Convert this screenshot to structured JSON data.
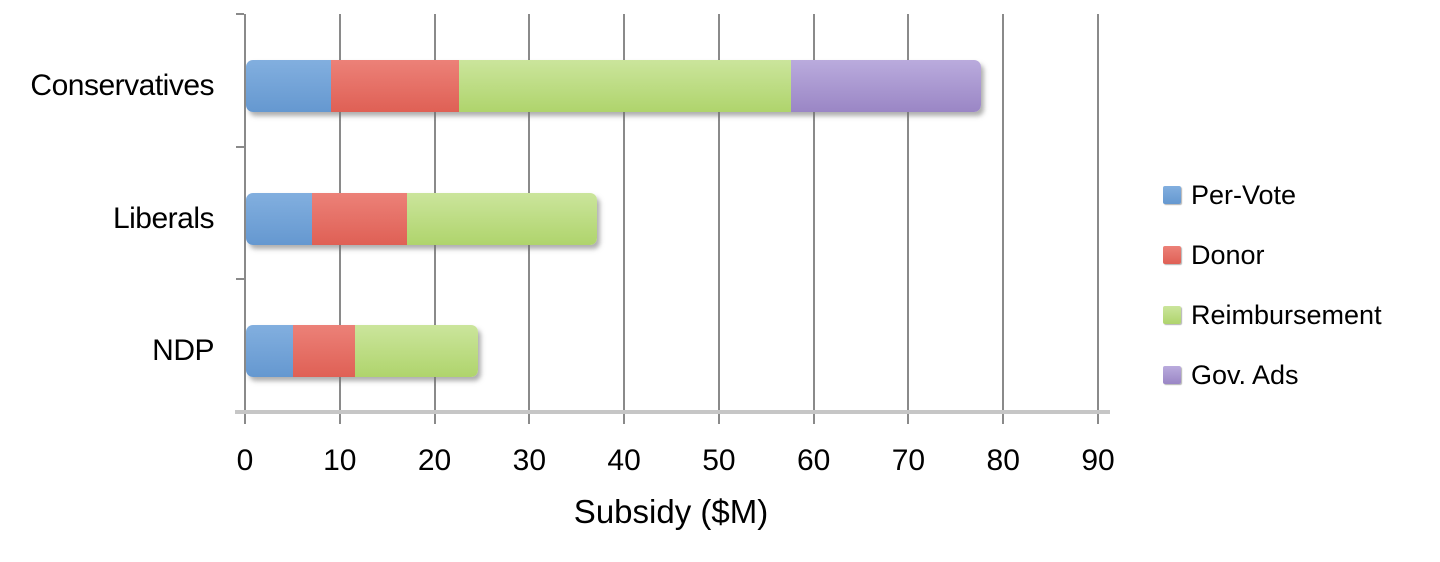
{
  "chart_data": {
    "type": "bar",
    "orientation": "horizontal",
    "stacked": true,
    "title": "",
    "xlabel": "Subsidy ($M)",
    "ylabel": "",
    "xlim": [
      0,
      90
    ],
    "xticks": [
      0,
      10,
      20,
      30,
      40,
      50,
      60,
      70,
      80,
      90
    ],
    "grid": true,
    "legend_position": "right",
    "categories": [
      "Conservatives",
      "Liberals",
      "NDP"
    ],
    "series": [
      {
        "name": "Per-Vote",
        "values": [
          9,
          7,
          5
        ],
        "color_top": "#82AFDF",
        "color_bottom": "#6598D0"
      },
      {
        "name": "Donor",
        "values": [
          13.5,
          10,
          6.5
        ],
        "color_top": "#EC8178",
        "color_bottom": "#DF6055"
      },
      {
        "name": "Reimbursement",
        "values": [
          35,
          20,
          13
        ],
        "color_top": "#CBE59C",
        "color_bottom": "#AFD46C"
      },
      {
        "name": "Gov. Ads",
        "values": [
          20,
          0,
          0
        ],
        "color_top": "#BAABDD",
        "color_bottom": "#9A86C5"
      }
    ]
  },
  "colors": {
    "gridline": "#8a8a8a",
    "axis_line": "#c6c6c6",
    "text": "#000000",
    "background": "#ffffff"
  }
}
